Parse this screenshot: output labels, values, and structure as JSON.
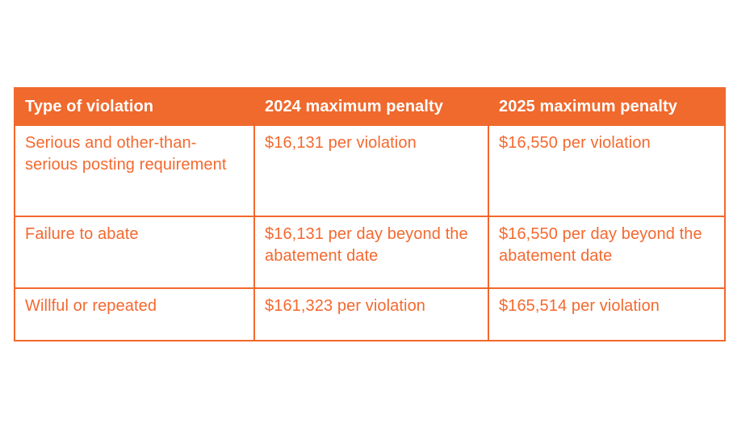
{
  "colors": {
    "header_bg": "#F0692D",
    "header_text": "#FFFFFF",
    "header_divider": "#FFFFFF",
    "body_text": "#F4692F",
    "border": "#F2682C",
    "cell_bg": "#FFFFFF",
    "page_bg": "#FFFFFF"
  },
  "chart_data": {
    "type": "table",
    "columns": [
      "Type of violation",
      "2024 maximum penalty",
      "2025 maximum penalty"
    ],
    "rows": [
      [
        "Serious and other-than-serious posting requirement",
        "$16,131 per violation",
        "$16,550 per violation"
      ],
      [
        "Failure to abate",
        "$16,131 per day beyond the abatement date",
        "$16,550 per day beyond the abatement date"
      ],
      [
        "Willful or repeated",
        "$161,323 per violation",
        "$165,514 per violation"
      ]
    ]
  }
}
